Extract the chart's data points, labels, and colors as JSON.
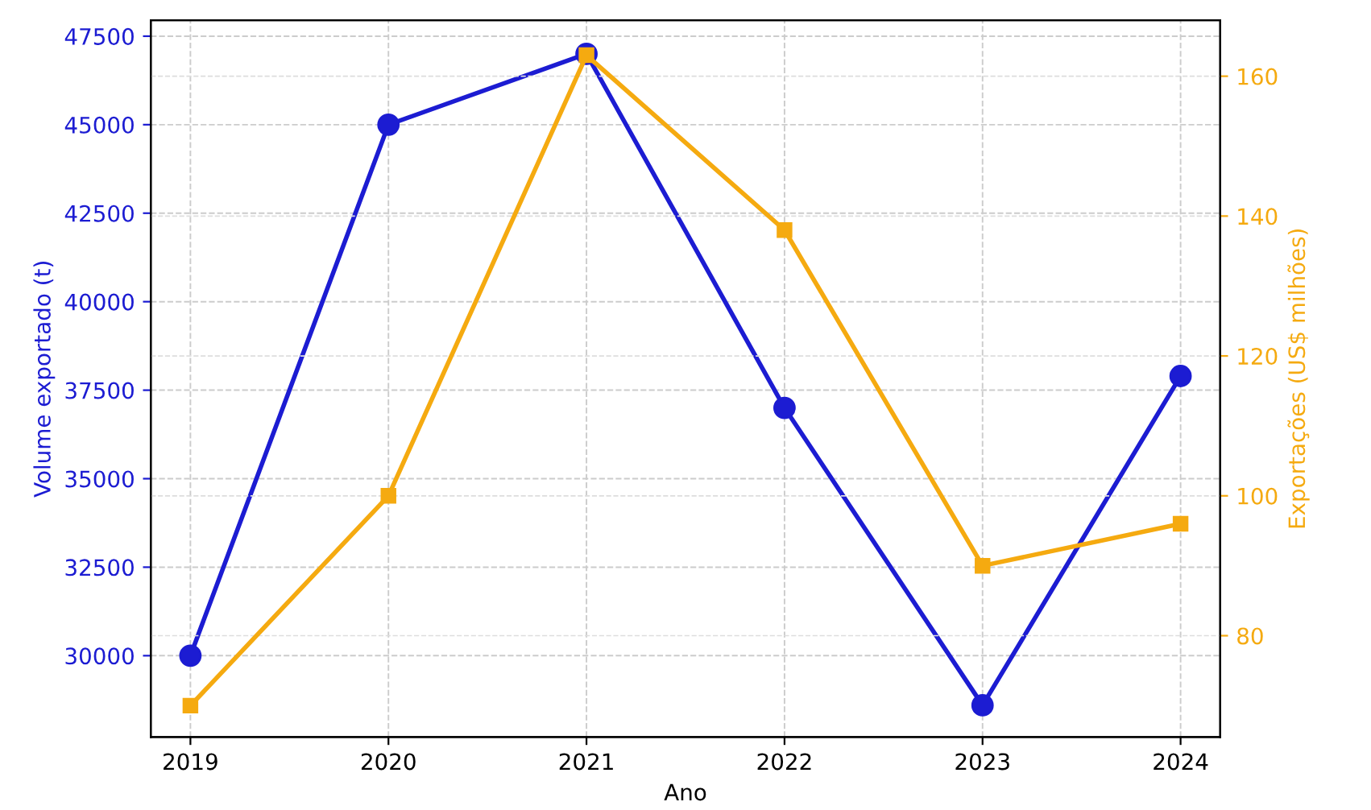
{
  "chart_data": {
    "type": "line",
    "xlabel": "Ano",
    "ylabel": "Volume exportado (t)",
    "y2label": "Exportações (US$ milhões)",
    "categories": [
      "2019",
      "2020",
      "2021",
      "2022",
      "2023",
      "2024"
    ],
    "series": [
      {
        "color": "#1c1cd2",
        "marker": "circle",
        "values": [
          30000,
          45000,
          47000,
          37000,
          28600,
          37900
        ]
      },
      {
        "color": "#f5aa10",
        "marker": "square",
        "axis": "y2",
        "values": [
          70,
          100,
          163,
          138,
          90,
          96
        ]
      }
    ],
    "ylim": [
      27700,
      47950
    ],
    "yticks": [
      30000,
      32500,
      35000,
      37500,
      40000,
      42500,
      45000,
      47500
    ],
    "y2lim": [
      65.5,
      168
    ],
    "y2ticks": [
      80,
      100,
      120,
      140,
      160
    ],
    "grid": true,
    "line_style": "solid"
  }
}
